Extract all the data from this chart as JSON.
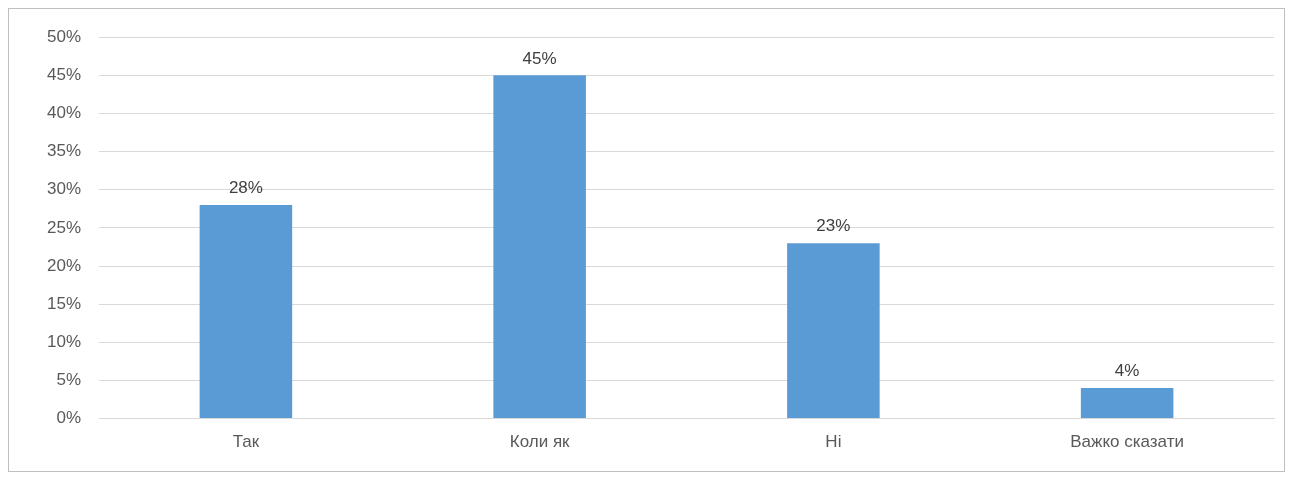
{
  "chart_data": {
    "type": "bar",
    "categories": [
      "Так",
      "Коли як",
      "Ні",
      "Важко сказати"
    ],
    "values": [
      28,
      45,
      23,
      4
    ],
    "color": "#5b9bd5",
    "value_labels": [
      "28%",
      "45%",
      "23%",
      "4%"
    ],
    "ylim": [
      0,
      50
    ],
    "yticks": [
      {
        "value": 0,
        "label": "0%"
      },
      {
        "value": 5,
        "label": "5%"
      },
      {
        "value": 10,
        "label": "10%"
      },
      {
        "value": 15,
        "label": "15%"
      },
      {
        "value": 20,
        "label": "20%"
      },
      {
        "value": 25,
        "label": "25%"
      },
      {
        "value": 30,
        "label": "30%"
      },
      {
        "value": 35,
        "label": "35%"
      },
      {
        "value": 40,
        "label": "40%"
      },
      {
        "value": 45,
        "label": "45%"
      },
      {
        "value": 50,
        "label": "50%"
      }
    ],
    "grid": "y",
    "legend": false
  }
}
